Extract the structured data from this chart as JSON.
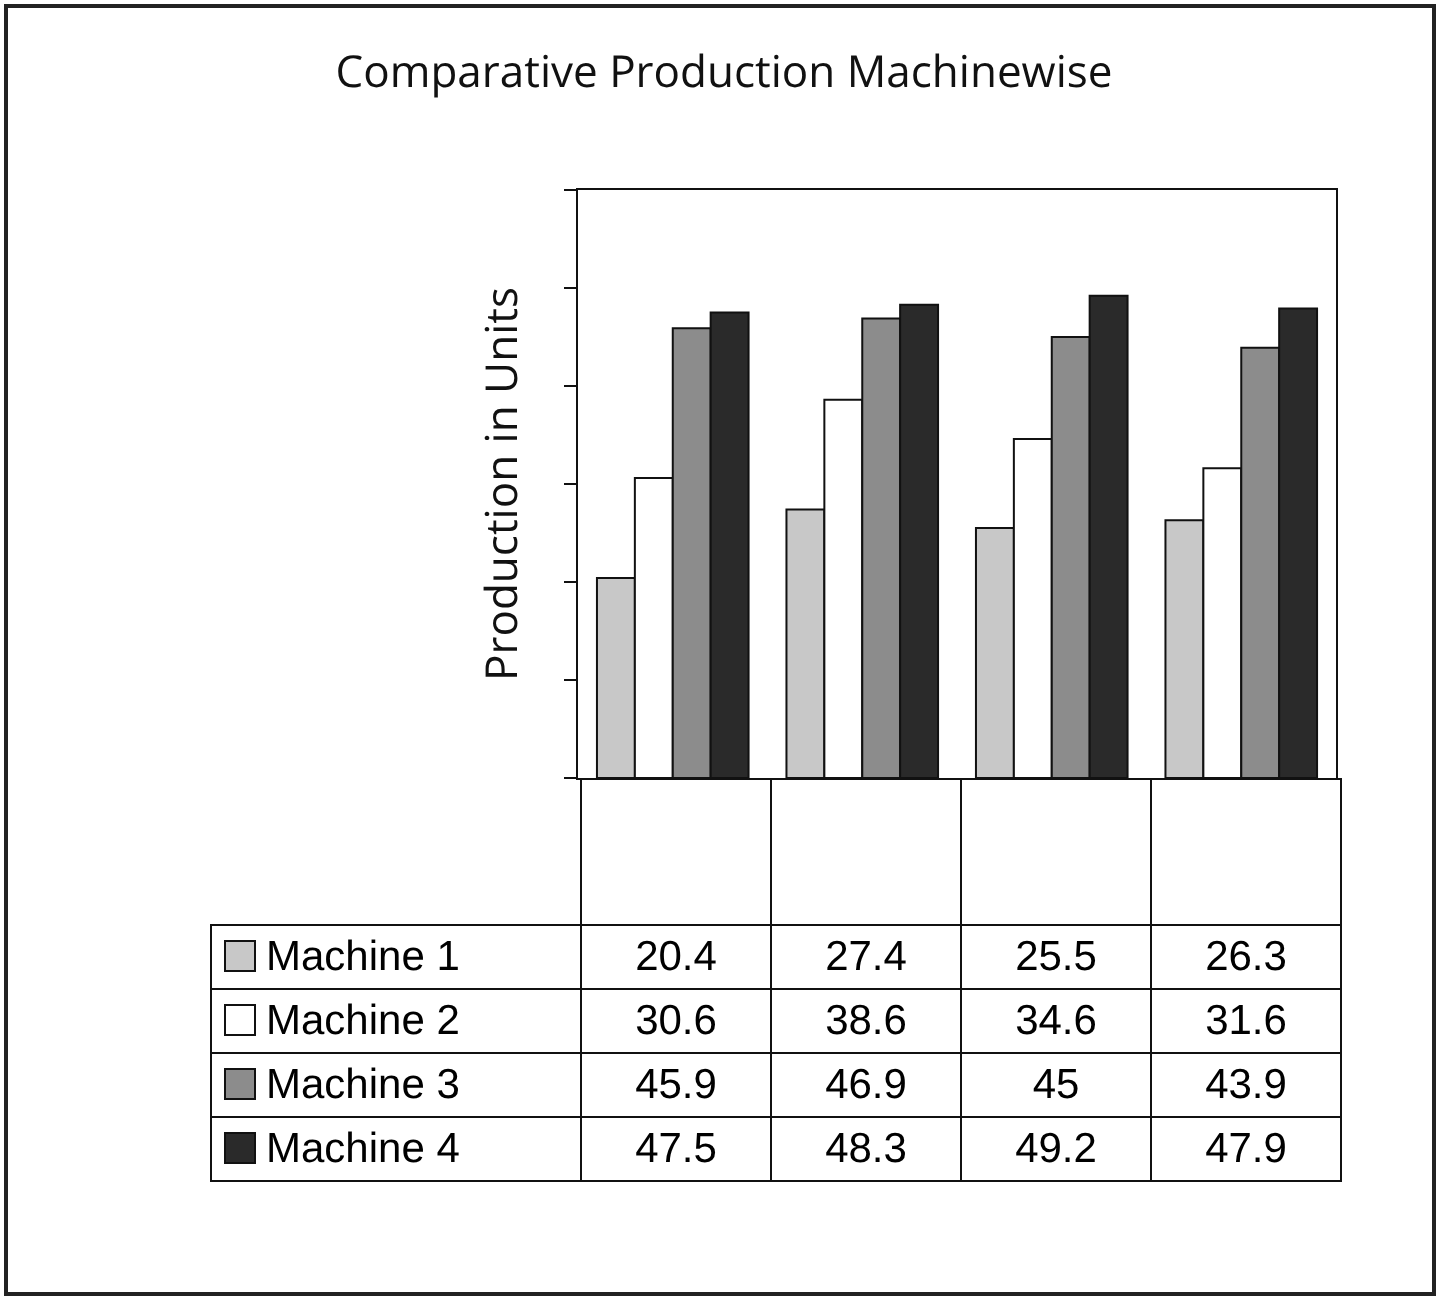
{
  "chart_data": {
    "type": "bar",
    "title": "Comparative Production Machinewise",
    "ylabel": "Production in Units",
    "categories": [
      null,
      null,
      null,
      null
    ],
    "series": [
      {
        "name": "Machine 1",
        "color": "#c8c8c8",
        "values": [
          20.4,
          27.4,
          25.5,
          26.3
        ]
      },
      {
        "name": "Machine 2",
        "color": "#ffffff",
        "values": [
          30.6,
          38.6,
          34.6,
          31.6
        ]
      },
      {
        "name": "Machine 3",
        "color": "#8c8c8c",
        "values": [
          45.9,
          46.9,
          45,
          43.9
        ]
      },
      {
        "name": "Machine 4",
        "color": "#2a2a2a",
        "values": [
          47.5,
          48.3,
          49.2,
          47.9
        ]
      }
    ],
    "ylim": [
      0,
      60
    ],
    "yticks": [
      {
        "value": 0,
        "label": null
      },
      {
        "value": 10,
        "label": null
      },
      {
        "value": 20,
        "label": null
      },
      {
        "value": 30,
        "label": null
      },
      {
        "value": 40,
        "label": null
      },
      {
        "value": 50,
        "label": null
      },
      {
        "value": 60,
        "label": null
      }
    ],
    "grid": false,
    "legend": "bottom",
    "data_labels": true
  }
}
